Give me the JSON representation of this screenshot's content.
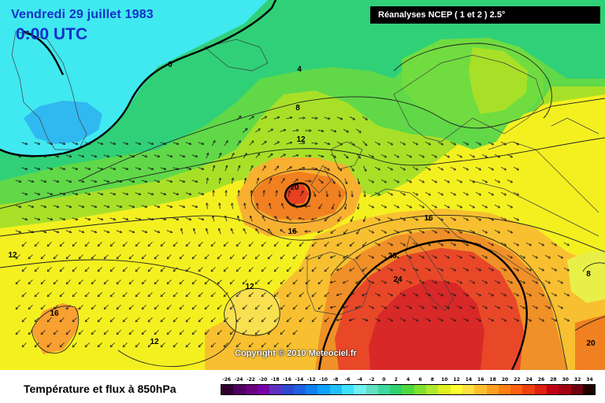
{
  "header": {
    "date": "Vendredi 29 juillet 1983",
    "time": "0:00 UTC",
    "source": "Réanalyses NCEP ( 1 et 2 ) 2.5°"
  },
  "copyright": "Copyright © 2010 Meteociel.fr",
  "footer": {
    "title": "Température et flux à 850hPa"
  },
  "scale": {
    "values": [
      "-26",
      "-24",
      "-22",
      "-20",
      "-18",
      "-16",
      "-14",
      "-12",
      "-10",
      "-8",
      "-6",
      "-4",
      "-2",
      "0",
      "2",
      "4",
      "6",
      "8",
      "10",
      "12",
      "14",
      "16",
      "18",
      "20",
      "22",
      "24",
      "26",
      "28",
      "30",
      "32",
      "34"
    ],
    "colors": [
      "#300030",
      "#500060",
      "#6a0080",
      "#7800a8",
      "#6030c0",
      "#3048d0",
      "#2060e0",
      "#1080f0",
      "#10a0ff",
      "#20c0ff",
      "#40e0ff",
      "#70f0f0",
      "#60e0c0",
      "#40d8a0",
      "#30d070",
      "#50d840",
      "#80e030",
      "#b0e830",
      "#e0f020",
      "#ffff30",
      "#ffe040",
      "#ffc030",
      "#ffa020",
      "#ff8010",
      "#ff6010",
      "#f04010",
      "#e02010",
      "#c00018",
      "#a00010",
      "#700010",
      "#200000"
    ]
  },
  "contour_labels": [
    {
      "text": "0",
      "name": "isotherm-0-label"
    },
    {
      "text": "4",
      "name": "isotherm-4-label"
    },
    {
      "text": "8",
      "name": "isotherm-8-label"
    },
    {
      "text": "12",
      "name": "isotherm-12-label-north"
    },
    {
      "text": "20",
      "name": "isotherm-20-label-center"
    },
    {
      "text": "16",
      "name": "isotherm-16-label-center"
    },
    {
      "text": "16",
      "name": "isotherm-16-label-east"
    },
    {
      "text": "20",
      "name": "isotherm-20-label-south"
    },
    {
      "text": "24",
      "name": "isotherm-24-label"
    },
    {
      "text": "12",
      "name": "isotherm-12-label-west"
    },
    {
      "text": "12",
      "name": "isotherm-12-label-iberia"
    },
    {
      "text": "16",
      "name": "isotherm-16-label-atlantic"
    },
    {
      "text": "12",
      "name": "isotherm-12-label-southwest"
    },
    {
      "text": "8",
      "name": "isotherm-8-label-east"
    },
    {
      "text": "20",
      "name": "isotherm-20-label-southeast"
    }
  ]
}
